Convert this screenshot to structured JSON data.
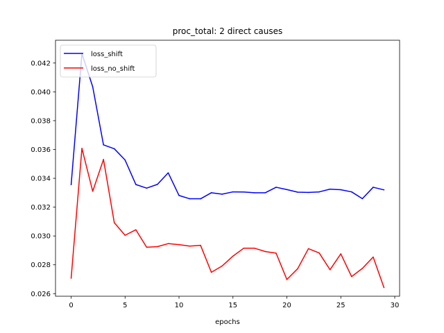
{
  "chart_data": {
    "type": "line",
    "title": "proc_total: 2 direct causes",
    "xlabel": "epochs",
    "ylabel": "",
    "xlim": [
      -1.45,
      30.45
    ],
    "ylim": [
      0.02582,
      0.04358
    ],
    "xticks": [
      0,
      5,
      10,
      15,
      20,
      25,
      30
    ],
    "xtick_labels": [
      "0",
      "5",
      "10",
      "15",
      "20",
      "25",
      "30"
    ],
    "yticks": [
      0.026,
      0.028,
      0.03,
      0.032,
      0.034,
      0.036,
      0.038,
      0.04,
      0.042
    ],
    "ytick_labels": [
      "0.026",
      "0.028",
      "0.030",
      "0.032",
      "0.034",
      "0.036",
      "0.038",
      "0.040",
      "0.042"
    ],
    "grid": false,
    "legend_position": "top-left",
    "x": [
      0,
      1,
      2,
      3,
      4,
      5,
      6,
      7,
      8,
      9,
      10,
      11,
      12,
      13,
      14,
      15,
      16,
      17,
      18,
      19,
      20,
      21,
      22,
      23,
      24,
      25,
      26,
      27,
      28,
      29
    ],
    "series": [
      {
        "name": "loss_shift",
        "color": "#0000ff",
        "values": [
          0.03356,
          0.04265,
          0.04035,
          0.03632,
          0.03605,
          0.03527,
          0.03357,
          0.03332,
          0.03358,
          0.03438,
          0.03281,
          0.03258,
          0.03258,
          0.033,
          0.0329,
          0.03306,
          0.03305,
          0.033,
          0.033,
          0.03338,
          0.03322,
          0.03304,
          0.03302,
          0.03306,
          0.03325,
          0.03321,
          0.03306,
          0.03259,
          0.03338,
          0.0332
        ]
      },
      {
        "name": "loss_no_shift",
        "color": "#ff0000",
        "values": [
          0.02707,
          0.03608,
          0.0331,
          0.03531,
          0.03092,
          0.03005,
          0.03043,
          0.02922,
          0.02926,
          0.02947,
          0.0294,
          0.0293,
          0.02935,
          0.02748,
          0.02792,
          0.0286,
          0.02915,
          0.02915,
          0.02892,
          0.02881,
          0.02698,
          0.02773,
          0.02912,
          0.02882,
          0.02766,
          0.02876,
          0.02718,
          0.02775,
          0.02854,
          0.02642
        ]
      }
    ]
  }
}
